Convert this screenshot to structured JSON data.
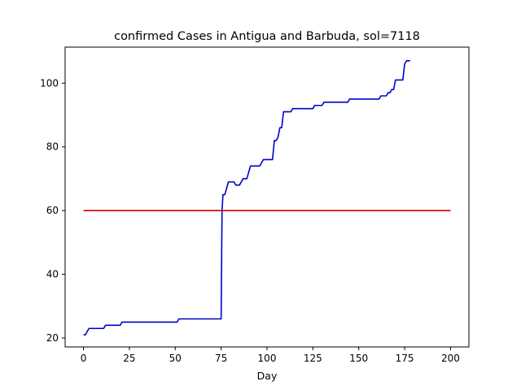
{
  "chart_data": {
    "type": "line",
    "title": "confirmed Cases in Antigua and Barbuda, sol=7118",
    "xlabel": "Day",
    "ylabel": "",
    "xlim": [
      -10,
      210
    ],
    "ylim": [
      17.2,
      111.3
    ],
    "xticks": [
      0,
      25,
      50,
      75,
      100,
      125,
      150,
      175,
      200
    ],
    "yticks": [
      20,
      40,
      60,
      80,
      100
    ],
    "grid": false,
    "colors": {
      "cases": "#0000cc",
      "threshold": "#cc0000"
    },
    "series": [
      {
        "key": "cases",
        "x": [
          0,
          1,
          2,
          3,
          10,
          11,
          12,
          20,
          21,
          50,
          51,
          52,
          75,
          75.5,
          76,
          77,
          78,
          79,
          80,
          81,
          82,
          83,
          84,
          85,
          86,
          87,
          88,
          89,
          90,
          91,
          92,
          93,
          94,
          95,
          96,
          97,
          98,
          99,
          100,
          101,
          102,
          103,
          104,
          105,
          106,
          107,
          108,
          109,
          110,
          111,
          112,
          113,
          114,
          120,
          125,
          126,
          129,
          130,
          131,
          144,
          145,
          146,
          160,
          161,
          162,
          164,
          165,
          166,
          167,
          168,
          169,
          170,
          171,
          172,
          173,
          174,
          175,
          176,
          177,
          178
        ],
        "y": [
          21,
          21,
          22,
          23,
          23,
          23,
          24,
          24,
          25,
          25,
          25,
          26,
          26,
          60,
          65,
          65,
          67,
          69,
          69,
          69,
          69,
          68,
          68,
          68,
          69,
          70,
          70,
          70,
          72,
          74,
          74,
          74,
          74,
          74,
          74,
          75,
          76,
          76,
          76,
          76,
          76,
          76,
          82,
          82,
          83,
          86,
          86,
          91,
          91,
          91,
          91,
          91,
          92,
          92,
          92,
          93,
          93,
          93,
          94,
          94,
          95,
          95,
          95,
          95,
          96,
          96,
          96,
          97,
          97,
          98,
          98,
          101,
          101,
          101,
          101,
          101,
          106,
          107,
          107,
          107
        ]
      },
      {
        "key": "threshold",
        "x": [
          0,
          200
        ],
        "y": [
          60,
          60
        ]
      }
    ]
  }
}
